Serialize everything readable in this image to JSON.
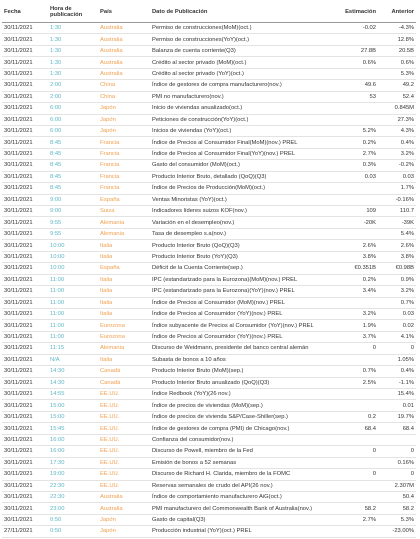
{
  "table": {
    "columns": [
      "Fecha",
      "Hora de publicación",
      "País",
      "Dato de Publicación",
      "Estimación",
      "Anterior"
    ],
    "rows": [
      [
        "30/11/2021",
        "1:30",
        "Australia",
        "Permiso de construcciones(MoM)(oct.)",
        "-0.02",
        "-4.3%"
      ],
      [
        "30/11/2021",
        "1:30",
        "Australia",
        "Permiso de construcciones(YoY)(oct.)",
        null,
        "12.8%"
      ],
      [
        "30/11/2021",
        "1:30",
        "Australia",
        "Balanza de cuenta corriente(Q3)",
        "27.8B",
        "20.5B"
      ],
      [
        "30/11/2021",
        "1:30",
        "Australia",
        "Crédito al sector privado (MoM)(oct.)",
        "0.6%",
        "0.6%"
      ],
      [
        "30/11/2021",
        "1:30",
        "Australia",
        "Crédito al sector privado (YoY)(oct.)",
        null,
        "5.3%"
      ],
      [
        "30/11/2021",
        "2:00",
        "China",
        "Índice de gestores de compra manufacturero(nov.)",
        "49.6",
        "49.2"
      ],
      [
        "30/11/2021",
        "2:00",
        "China",
        "PMI no manufacturero(nov.)",
        "53",
        "52.4"
      ],
      [
        "30/11/2021",
        "6:00",
        "Japón",
        "Inicio de viviendas anualizado(oct.)",
        null,
        "0.845M"
      ],
      [
        "30/11/2021",
        "6:00",
        "Japón",
        "Peticiones de construcción(YoY)(oct.)",
        null,
        "27.3%"
      ],
      [
        "30/11/2021",
        "6:00",
        "Japón",
        "Inicios de viviendas (YoY)(oct.)",
        "5.2%",
        "4.3%"
      ],
      [
        "30/11/2021",
        "8:45",
        "Francia",
        "Índice de Precios al Consumidor Final(MoM)(nov.) PREL",
        "0.2%",
        "0.4%"
      ],
      [
        "30/11/2021",
        "8:45",
        "Francia",
        "Índice de Precios al Consumidor Final(YoY)(nov.) PREL",
        "2.7%",
        "3.2%"
      ],
      [
        "30/11/2021",
        "8:45",
        "Francia",
        "Gasto del consumidor (MoM)(oct.)",
        "0.3%",
        "-0.2%"
      ],
      [
        "30/11/2021",
        "8:45",
        "Francia",
        "Producto Interior Bruto, detallado (QoQ)(Q3)",
        "0.03",
        "0.03"
      ],
      [
        "30/11/2021",
        "8:45",
        "Francia",
        "Índice de Precios de Producción(MoM)(oct.)",
        null,
        "1.7%"
      ],
      [
        "30/11/2021",
        "9:00",
        "España",
        "Ventas Minoristas (YoY)(oct.)",
        null,
        "-0.16%"
      ],
      [
        "30/11/2021",
        "9:00",
        "Suiza",
        "Indicadores líderes suizos KOF(nov.)",
        "109",
        "110.7"
      ],
      [
        "30/11/2021",
        "9:55",
        "Alemania",
        "Variación en el desempleo(nov.)",
        "-20K",
        "-39K"
      ],
      [
        "30/11/2021",
        "9:55",
        "Alemania",
        "Tasa de desempleo s.a(nov.)",
        null,
        "5.4%"
      ],
      [
        "30/11/2021",
        "10:00",
        "Italia",
        "Producto Interior Bruto (QoQ)(Q3)",
        "2.6%",
        "2.6%"
      ],
      [
        "30/11/2021",
        "10:00",
        "Italia",
        "Producto Interior Bruto (YoY)(Q3)",
        "3.8%",
        "3.8%"
      ],
      [
        "30/11/2021",
        "10:00",
        "España",
        "Déficit de la Cuenta Corriente(sep.)",
        "€0.351B",
        "€0.98B"
      ],
      [
        "30/11/2021",
        "11:00",
        "Italia",
        "IPC (estandarizado para la Eurozona)(MoM)(nov.) PREL",
        "0.2%",
        "0.9%"
      ],
      [
        "30/11/2021",
        "11:00",
        "Italia",
        "IPC (estandarizado para la Eurozona)(YoY)(nov.) PREL",
        "3.4%",
        "3.2%"
      ],
      [
        "30/11/2021",
        "11:00",
        "Italia",
        "Índice de Precios al Consumidor (MoM)(nov.) PREL",
        null,
        "0.7%"
      ],
      [
        "30/11/2021",
        "11:00",
        "Italia",
        "Índice de Precios al Consumidor (YoY)(nov.) PREL",
        "3.2%",
        "0.03"
      ],
      [
        "30/11/2021",
        "11:00",
        "Eurozona",
        "Índice subyacente de Precios al Consumidor (YoY)(nov.) PREL",
        "1.9%",
        "0.02"
      ],
      [
        "30/11/2021",
        "11:00",
        "Eurozona",
        "Índice de Precios al Consumidor (YoY)(nov.) PREL",
        "3.7%",
        "4.1%"
      ],
      [
        "30/11/2021",
        "11:15",
        "Alemania",
        "Discurso de Weidmann, presidente del banco central alemán",
        "0",
        "0"
      ],
      [
        "30/11/2021",
        "N/A",
        "Italia",
        "Subasta de bonos a 10 años",
        null,
        "1.05%"
      ],
      [
        "30/11/2021",
        "14:30",
        "Canadá",
        "Producto Interior Bruto (MoM)(sep.)",
        "0.7%",
        "0.4%"
      ],
      [
        "30/11/2021",
        "14:30",
        "Canadá",
        "Producto Interior Bruto anualizado (QoQ)(Q3)",
        "2.5%",
        "-1.1%"
      ],
      [
        "30/11/2021",
        "14:55",
        "EE.UU.",
        "Índice Redbook (YoY)(26 nov.)",
        null,
        "15.4%"
      ],
      [
        "30/11/2021",
        "15:00",
        "EE.UU.",
        "Índice de precios de viviendas (MoM)(sep.)",
        null,
        "0.01"
      ],
      [
        "30/11/2021",
        "15:00",
        "EE.UU.",
        "Índice de precios de vivienda S&P/Case-Shiller(sep.)",
        "0.2",
        "19.7%"
      ],
      [
        "30/11/2021",
        "15:45",
        "EE.UU.",
        "Índice de gestores de compra (PMI) de Chicago(nov.)",
        "68.4",
        "68.4"
      ],
      [
        "30/11/2021",
        "16:00",
        "EE.UU.",
        "Confianza del consumidor(nov.)",
        null,
        null
      ],
      [
        "30/11/2021",
        "16:00",
        "EE.UU.",
        "Discurso de Powell, miembro de la Fed",
        "0",
        "0"
      ],
      [
        "30/11/2021",
        "17:30",
        "EE.UU.",
        "Emisión de bonos a 52 semanas",
        null,
        "0.16%"
      ],
      [
        "30/11/2021",
        "19:00",
        "EE.UU.",
        "Discurso de Richard H. Clarida, miembro de la FOMC",
        "0",
        "0"
      ],
      [
        "30/11/2021",
        "22:30",
        "EE.UU.",
        "Reservas semanales de crudo del API(26 nov.)",
        null,
        "2.307M"
      ],
      [
        "30/11/2021",
        "22:30",
        "Australia",
        "Índice de comportamiento manufacturero AiG(oct.)",
        null,
        "50.4"
      ],
      [
        "30/11/2021",
        "23:00",
        "Australia",
        "PMI manufacturero del Commonwealth Bank of Australia(nov.)",
        "58.2",
        "58.2"
      ],
      [
        "30/11/2021",
        "0:50",
        "Japón",
        "Gasto de capital(Q3)",
        "2.7%",
        "5.3%"
      ],
      [
        "27/11/2021",
        "0:50",
        "Japón",
        "Producción industrial (YoY)(oct.) PREL",
        null,
        "-23.00%"
      ]
    ]
  }
}
